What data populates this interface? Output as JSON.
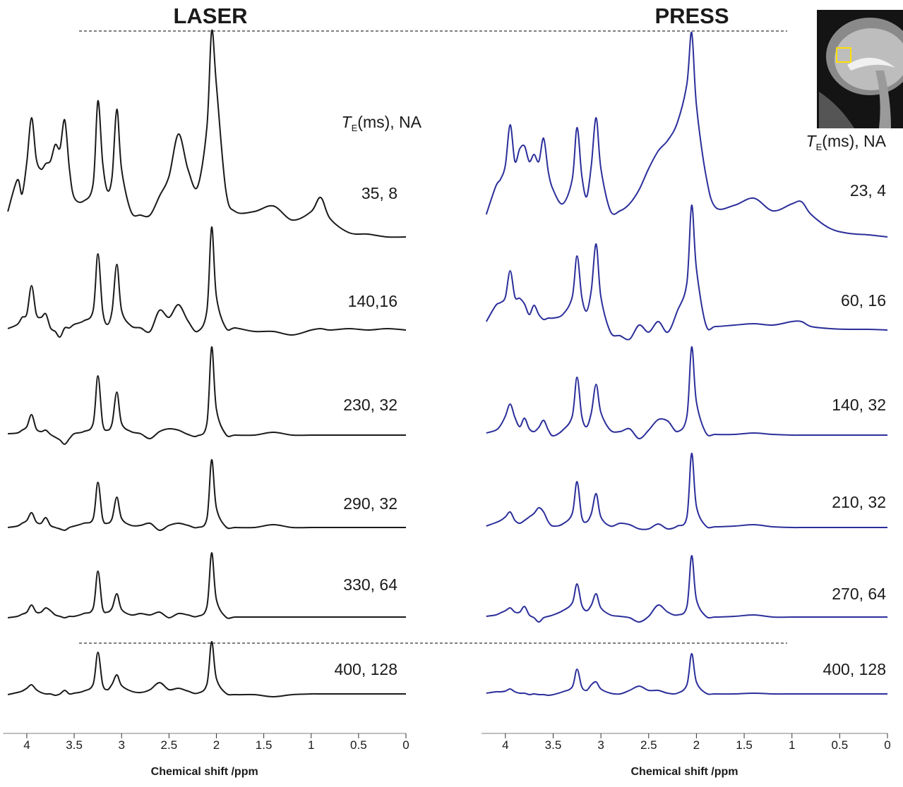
{
  "chart_data": [
    {
      "type": "line",
      "title": "LASER",
      "xlabel": "Chemical shift /ppm",
      "annotation": {
        "symbol": "T",
        "subscript": "E",
        "text": "(ms), NA"
      },
      "xlim": [
        4.25,
        0
      ],
      "xticks": [
        4,
        3.5,
        3,
        2.5,
        2,
        1.5,
        1,
        0.5,
        0
      ],
      "x": [
        4.2,
        4.1,
        4.05,
        4.0,
        3.95,
        3.9,
        3.85,
        3.8,
        3.75,
        3.7,
        3.65,
        3.6,
        3.55,
        3.5,
        3.4,
        3.3,
        3.25,
        3.2,
        3.15,
        3.1,
        3.05,
        3.0,
        2.9,
        2.8,
        2.7,
        2.6,
        2.5,
        2.4,
        2.3,
        2.2,
        2.1,
        2.05,
        2.0,
        1.9,
        1.8,
        1.6,
        1.4,
        1.2,
        1.0,
        0.9,
        0.8,
        0.6,
        0.4,
        0.2,
        0
      ],
      "series": [
        {
          "name": "35, 8",
          "color": "#1a1a1a",
          "values": [
            36,
            81,
            61,
            106,
            169,
            111,
            96,
            104,
            108,
            131,
            126,
            166,
            96,
            56,
            51,
            76,
            193,
            106,
            66,
            86,
            181,
            96,
            36,
            31,
            31,
            58,
            86,
            146,
            96,
            71,
            156,
            292,
            216,
            66,
            36,
            36,
            44,
            24,
            36,
            56,
            26,
            6,
            4,
            0,
            0
          ]
        },
        {
          "name": "140,16",
          "color": "#1a1a1a",
          "values": [
            2,
            8,
            18,
            23,
            63,
            23,
            18,
            23,
            3,
            -2,
            -10,
            3,
            3,
            8,
            13,
            28,
            108,
            28,
            8,
            28,
            93,
            28,
            6,
            3,
            -2,
            28,
            18,
            36,
            13,
            -2,
            28,
            146,
            48,
            3,
            3,
            -2,
            -2,
            -7,
            0,
            2,
            0,
            2,
            0,
            2,
            0
          ]
        },
        {
          "name": "230, 32",
          "color": "#1a1a1a",
          "values": [
            2,
            3,
            7,
            12,
            29,
            9,
            5,
            7,
            1,
            -3,
            -7,
            -13,
            -5,
            2,
            5,
            17,
            84,
            17,
            7,
            17,
            61,
            17,
            5,
            2,
            -5,
            5,
            9,
            7,
            1,
            -1,
            17,
            125,
            37,
            1,
            0,
            0,
            4,
            0,
            0,
            0,
            0,
            0,
            0,
            0,
            0
          ]
        },
        {
          "name": "290, 32",
          "color": "#1a1a1a",
          "values": [
            0,
            2,
            6,
            10,
            21,
            8,
            6,
            14,
            3,
            0,
            -2,
            -4,
            0,
            2,
            6,
            13,
            64,
            13,
            6,
            13,
            43,
            13,
            3,
            3,
            6,
            -4,
            3,
            6,
            3,
            0,
            13,
            96,
            28,
            1,
            0,
            0,
            4,
            0,
            0,
            0,
            0,
            0,
            0,
            0,
            0
          ]
        },
        {
          "name": "330, 64",
          "color": "#1a1a1a",
          "values": [
            -1,
            1,
            4,
            7,
            17,
            7,
            7,
            13,
            9,
            3,
            1,
            -1,
            1,
            1,
            5,
            13,
            65,
            13,
            7,
            13,
            33,
            11,
            3,
            5,
            3,
            7,
            -1,
            5,
            3,
            1,
            15,
            91,
            25,
            0,
            0,
            0,
            0,
            0,
            0,
            0,
            0,
            0,
            0,
            0,
            0
          ]
        },
        {
          "name": "400, 128",
          "color": "#1a1a1a",
          "values": [
            -1,
            2,
            4,
            8,
            13,
            6,
            2,
            0,
            0,
            -2,
            0,
            5,
            0,
            1,
            4,
            14,
            59,
            14,
            6,
            14,
            27,
            12,
            4,
            2,
            6,
            16,
            6,
            8,
            4,
            1,
            14,
            74,
            22,
            1,
            -1,
            -1,
            -4,
            -1,
            0,
            0,
            0,
            0,
            0,
            0,
            0
          ]
        }
      ]
    },
    {
      "type": "line",
      "title": "PRESS",
      "xlabel": "Chemical shift /ppm",
      "annotation": {
        "symbol": "T",
        "subscript": "E",
        "text": "(ms), NA"
      },
      "xlim": [
        4.25,
        0
      ],
      "xticks": [
        4,
        3.5,
        3,
        2.5,
        2,
        1.5,
        1,
        0.5,
        0
      ],
      "x": [
        4.2,
        4.1,
        4.05,
        4.0,
        3.95,
        3.9,
        3.85,
        3.8,
        3.75,
        3.7,
        3.65,
        3.6,
        3.55,
        3.5,
        3.4,
        3.3,
        3.25,
        3.2,
        3.15,
        3.1,
        3.05,
        3.0,
        2.9,
        2.8,
        2.7,
        2.6,
        2.5,
        2.4,
        2.3,
        2.2,
        2.1,
        2.05,
        2.0,
        1.9,
        1.8,
        1.6,
        1.4,
        1.2,
        1.0,
        0.9,
        0.8,
        0.6,
        0.4,
        0.2,
        0
      ],
      "series": [
        {
          "name": "23, 4",
          "color": "#2b2f9a",
          "values": [
            32,
            72,
            82,
            102,
            159,
            107,
            125,
            129,
            107,
            117,
            107,
            140,
            92,
            67,
            47,
            82,
            155,
            87,
            57,
            102,
            169,
            97,
            37,
            37,
            47,
            67,
            97,
            122,
            137,
            162,
            217,
            290,
            187,
            87,
            42,
            45,
            55,
            37,
            47,
            50,
            32,
            12,
            5,
            3,
            0
          ]
        },
        {
          "name": "60, 16",
          "color": "#2b2f9a",
          "values": [
            12,
            35,
            39,
            47,
            84,
            47,
            45,
            37,
            22,
            35,
            22,
            15,
            17,
            17,
            22,
            47,
            105,
            47,
            27,
            57,
            122,
            47,
            -3,
            -8,
            -13,
            7,
            -3,
            12,
            -3,
            27,
            67,
            177,
            87,
            7,
            5,
            7,
            9,
            7,
            12,
            12,
            5,
            2,
            1,
            1,
            0
          ]
        },
        {
          "name": "140, 32",
          "color": "#2b2f9a",
          "values": [
            3,
            7,
            14,
            27,
            44,
            25,
            12,
            24,
            9,
            5,
            11,
            21,
            7,
            -1,
            7,
            27,
            82,
            27,
            12,
            32,
            72,
            32,
            7,
            5,
            9,
            -5,
            7,
            22,
            20,
            5,
            27,
            125,
            47,
            3,
            1,
            1,
            3,
            1,
            0,
            0,
            0,
            0,
            0,
            0,
            0
          ]
        },
        {
          "name": "210, 32",
          "color": "#2b2f9a",
          "values": [
            2,
            7,
            10,
            15,
            22,
            10,
            6,
            10,
            15,
            20,
            28,
            22,
            8,
            2,
            5,
            20,
            65,
            15,
            8,
            20,
            48,
            15,
            2,
            6,
            4,
            -2,
            -2,
            5,
            -2,
            2,
            15,
            105,
            30,
            2,
            1,
            2,
            4,
            1,
            0,
            0,
            0,
            0,
            0,
            0,
            0
          ]
        },
        {
          "name": "270, 64",
          "color": "#2b2f9a",
          "values": [
            1,
            3,
            6,
            9,
            13,
            7,
            7,
            15,
            3,
            -1,
            -7,
            -1,
            1,
            3,
            9,
            20,
            47,
            17,
            9,
            17,
            33,
            13,
            3,
            1,
            -1,
            -7,
            1,
            17,
            7,
            3,
            15,
            87,
            25,
            1,
            0,
            1,
            3,
            0,
            0,
            0,
            0,
            0,
            0,
            0,
            0
          ]
        },
        {
          "name": "400, 128",
          "color": "#2b2f9a",
          "values": [
            1,
            3,
            3,
            4,
            7,
            3,
            1,
            1,
            -1,
            0,
            -1,
            -1,
            -2,
            -1,
            3,
            10,
            35,
            10,
            5,
            13,
            17,
            7,
            1,
            0,
            5,
            11,
            5,
            5,
            1,
            1,
            13,
            57,
            17,
            1,
            0,
            0,
            1,
            0,
            0,
            0,
            0,
            0,
            0,
            0,
            0
          ]
        }
      ]
    }
  ]
}
